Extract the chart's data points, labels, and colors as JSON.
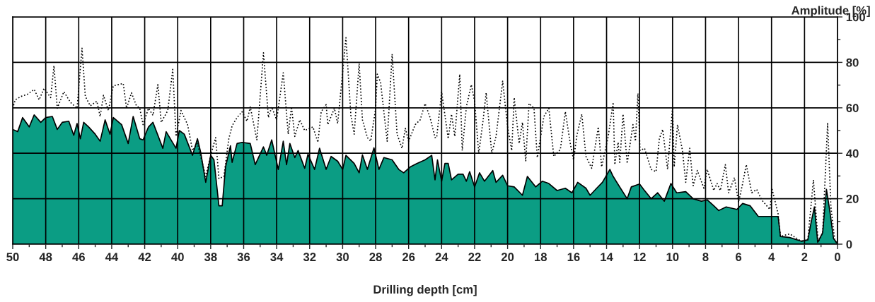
{
  "chart_data": {
    "type": "area",
    "xlabel": "Drilling depth [cm]",
    "ylabel": "Amplitude [%]",
    "xlim": [
      50,
      0
    ],
    "ylim": [
      0,
      100
    ],
    "xticks": [
      50,
      {
        "value": 49,
        "label": null
      },
      48,
      {
        "value": 47,
        "label": null
      },
      46,
      {
        "value": 45,
        "label": null
      },
      44,
      {
        "value": 43,
        "label": null
      },
      42,
      {
        "value": 41,
        "label": null
      },
      40,
      {
        "value": 39,
        "label": null
      },
      38,
      {
        "value": 37,
        "label": null
      },
      36,
      {
        "value": 35,
        "label": null
      },
      34,
      {
        "value": 33,
        "label": null
      },
      32,
      {
        "value": 31,
        "label": null
      },
      30,
      {
        "value": 29,
        "label": null
      },
      28,
      {
        "value": 27,
        "label": null
      },
      26,
      {
        "value": 25,
        "label": null
      },
      24,
      {
        "value": 23,
        "label": null
      },
      22,
      {
        "value": 21,
        "label": null
      },
      20,
      {
        "value": 19,
        "label": null
      },
      18,
      {
        "value": 17,
        "label": null
      },
      16,
      {
        "value": 15,
        "label": null
      },
      14,
      {
        "value": 13,
        "label": null
      },
      12,
      {
        "value": 11,
        "label": null
      },
      10,
      {
        "value": 9,
        "label": null
      },
      8,
      {
        "value": 7,
        "label": null
      },
      6,
      {
        "value": 5,
        "label": null
      },
      4,
      {
        "value": 3,
        "label": null
      },
      2,
      {
        "value": 1,
        "label": null
      },
      0
    ],
    "yticks": [
      0,
      {
        "value": 10,
        "label": null
      },
      20,
      {
        "value": 30,
        "label": null
      },
      40,
      {
        "value": 50,
        "label": null
      },
      60,
      {
        "value": 70,
        "label": null
      },
      80,
      {
        "value": 90,
        "label": null
      },
      100
    ],
    "grid": true,
    "legend": false,
    "series": [
      {
        "color": "#0b9d84",
        "line_style": "solid",
        "x": [
          50,
          49.7,
          49.4,
          49.0,
          48.7,
          48.3,
          48.0,
          47.6,
          47.3,
          47.0,
          46.6,
          46.3,
          46.1,
          45.9,
          45.7,
          45.4,
          45.0,
          44.7,
          44.4,
          44.1,
          43.9,
          43.4,
          43.0,
          42.7,
          42.3,
          42.1,
          41.77,
          41.5,
          40.9,
          40.7,
          40.1,
          39.9,
          39.6,
          39.1,
          38.8,
          38.6,
          38.3,
          38.0,
          37.8,
          37.5,
          37.3,
          37.1,
          36.8,
          36.7,
          36.4,
          36.1,
          35.6,
          35.3,
          34.8,
          34.6,
          34.3,
          33.9,
          33.6,
          33.4,
          33.2,
          32.9,
          32.7,
          32.3,
          32.1,
          31.7,
          31.4,
          31.0,
          30.7,
          30.3,
          30.0,
          29.8,
          29.3,
          29.0,
          28.8,
          28.5,
          28.1,
          27.8,
          27.5,
          27.0,
          26.6,
          26.3,
          25.9,
          25.5,
          25.0,
          24.6,
          24.4,
          24.25,
          24.0,
          23.8,
          23.6,
          23.4,
          23.0,
          22.7,
          22.5,
          22.3,
          22.0,
          21.7,
          21.4,
          20.9,
          20.7,
          20.3,
          20.0,
          19.6,
          19.1,
          18.8,
          18.3,
          17.9,
          17.5,
          17.0,
          16.5,
          16.1,
          15.75,
          15.25,
          15.0,
          14.6,
          14.25,
          13.8,
          13.6,
          13.25,
          12.75,
          12.5,
          12.0,
          11.75,
          11.3,
          10.9,
          10.5,
          10.1,
          9.75,
          9.2,
          8.75,
          8.25,
          7.9,
          7.5,
          7.2,
          6.75,
          6.1,
          5.75,
          5.3,
          4.8,
          4.2,
          3.6,
          3.46,
          2.9,
          2.2,
          1.8,
          1.6,
          1.4,
          1.2,
          0.9,
          0.67,
          0.46,
          0.24,
          0
        ],
        "values": [
          50.5,
          49.5,
          55.7,
          51.6,
          56.9,
          53.6,
          55.7,
          56.2,
          50.5,
          53.6,
          54.1,
          47.9,
          53.1,
          46.4,
          53.6,
          51.6,
          48.4,
          45.3,
          54.7,
          48.4,
          55.7,
          52.6,
          44.3,
          56.2,
          46.4,
          45.9,
          51.6,
          53.6,
          42.2,
          49.5,
          42.2,
          50.0,
          48.4,
          39.1,
          46.4,
          40.2,
          27.2,
          39.1,
          37.1,
          16.9,
          16.9,
          34.0,
          43.3,
          36.0,
          44.3,
          44.8,
          44.3,
          35.0,
          42.8,
          39.1,
          45.9,
          32.9,
          45.3,
          35.0,
          44.3,
          38.1,
          41.2,
          33.4,
          39.6,
          32.9,
          42.2,
          32.9,
          38.6,
          36.5,
          32.9,
          39.1,
          35.5,
          31.4,
          39.3,
          32.9,
          42.4,
          32.9,
          38.1,
          37.1,
          32.9,
          31.4,
          34.0,
          35.5,
          37.1,
          39.1,
          28.3,
          37.1,
          27.7,
          35.5,
          35.5,
          28.3,
          30.8,
          30.8,
          27.7,
          31.9,
          25.2,
          31.4,
          27.7,
          32.4,
          27.2,
          30.3,
          25.7,
          25.2,
          21.5,
          29.8,
          25.2,
          27.7,
          26.7,
          23.6,
          24.6,
          22.6,
          27.2,
          24.6,
          21.5,
          24.6,
          27.2,
          32.9,
          29.8,
          25.7,
          20.0,
          25.2,
          26.5,
          24.1,
          20.0,
          22.6,
          18.9,
          26.7,
          22.6,
          23.1,
          20.0,
          18.9,
          19.5,
          16.9,
          14.8,
          16.4,
          15.3,
          17.9,
          16.9,
          12.2,
          12.2,
          12.2,
          3.4,
          2.9,
          1.3,
          1.9,
          9.6,
          16.4,
          0.8,
          5.0,
          24.1,
          14.3,
          2.4,
          0.3
        ]
      },
      {
        "type": "line",
        "color": "#000000",
        "line_style": "dotted",
        "x": [
          50.0,
          49.85,
          49.5,
          49.1,
          48.7,
          48.4,
          48.1,
          47.7,
          47.5,
          47.3,
          46.9,
          46.5,
          46.1,
          45.8,
          45.6,
          45.3,
          44.9,
          44.7,
          44.5,
          44.2,
          43.9,
          43.3,
          43.1,
          42.8,
          42.5,
          42.3,
          42.1,
          41.77,
          41.5,
          41.2,
          41.0,
          40.6,
          40.3,
          40.1,
          39.8,
          39.4,
          39.1,
          38.8,
          38.3,
          38.0,
          37.7,
          37.5,
          37.2,
          36.9,
          36.7,
          36.4,
          36.1,
          35.8,
          35.6,
          35.2,
          34.8,
          34.5,
          34.3,
          34.0,
          33.6,
          33.3,
          33.1,
          32.9,
          32.6,
          32.3,
          31.8,
          31.5,
          31.3,
          31.0,
          30.9,
          30.5,
          30.3,
          30.1,
          29.8,
          29.5,
          29.3,
          29.0,
          28.8,
          28.5,
          28.3,
          28.0,
          27.9,
          27.7,
          27.3,
          27.0,
          26.7,
          26.4,
          26.2,
          26.0,
          25.6,
          25.3,
          25.0,
          24.7,
          24.4,
          24.3,
          24.0,
          23.6,
          23.4,
          23.2,
          22.9,
          22.75,
          22.5,
          22.2,
          22.0,
          21.75,
          21.5,
          21.3,
          20.96,
          20.7,
          20.3,
          20.0,
          19.75,
          19.6,
          19.3,
          19.1,
          18.9,
          18.7,
          18.4,
          18.2,
          17.8,
          17.5,
          17.2,
          16.8,
          16.5,
          16.2,
          16.0,
          15.8,
          15.5,
          15.25,
          14.9,
          14.5,
          14.3,
          13.9,
          13.6,
          13.5,
          13.3,
          13.2,
          13.0,
          12.75,
          12.4,
          12.25,
          12.1,
          11.97,
          11.7,
          11.3,
          11.0,
          10.8,
          10.6,
          10.3,
          10.0,
          9.9,
          9.7,
          9.4,
          9.2,
          8.96,
          8.75,
          8.5,
          8.1,
          7.9,
          7.5,
          7.3,
          7.1,
          6.8,
          6.6,
          6.25,
          6.0,
          5.75,
          5.53,
          5.2,
          4.9,
          4.6,
          4.1,
          3.96,
          3.6,
          3.46,
          2.9,
          2.2,
          1.8,
          1.46,
          1.17,
          0.9,
          0.6,
          0.4,
          0.16,
          0
        ],
        "values": [
          59.8,
          63.5,
          65.0,
          66.0,
          68.1,
          63.5,
          68.6,
          64.5,
          78.5,
          59.8,
          67.1,
          62.4,
          59.8,
          86.2,
          65.0,
          60.9,
          62.9,
          56.2,
          65.5,
          58.8,
          69.7,
          70.7,
          59.8,
          66.6,
          60.9,
          59.8,
          52.6,
          59.8,
          56.7,
          70.2,
          53.6,
          58.8,
          76.9,
          47.4,
          58.8,
          52.6,
          41.2,
          44.3,
          29.8,
          39.1,
          46.9,
          28.8,
          29.8,
          46.4,
          52.1,
          55.7,
          58.3,
          54.1,
          60.4,
          45.9,
          84.2,
          55.7,
          60.4,
          54.7,
          75.4,
          48.4,
          60.4,
          47.4,
          54.7,
          50.0,
          51.6,
          44.8,
          58.3,
          61.4,
          52.6,
          59.8,
          53.1,
          68.1,
          90.9,
          56.7,
          48.4,
          79.5,
          54.7,
          46.9,
          45.3,
          59.8,
          74.8,
          71.2,
          45.3,
          83.6,
          48.4,
          42.2,
          51.0,
          45.3,
          52.6,
          54.7,
          61.9,
          55.7,
          46.9,
          46.9,
          67.1,
          46.4,
          57.2,
          47.4,
          74.8,
          41.2,
          60.4,
          70.2,
          62.9,
          40.0,
          53.6,
          66.6,
          40.0,
          47.4,
          71.7,
          51.6,
          41.2,
          64.5,
          44.3,
          53.6,
          36.5,
          61.9,
          59.8,
          38.1,
          56.2,
          59.8,
          38.6,
          41.7,
          58.3,
          44.3,
          37.1,
          47.9,
          57.2,
          38.6,
          33.4,
          51.6,
          34.0,
          47.4,
          62.4,
          35.0,
          44.8,
          36.0,
          57.2,
          35.5,
          52.6,
          45.3,
          66.3,
          41.2,
          42.2,
          32.9,
          31.9,
          46.4,
          50.5,
          32.9,
          60.4,
          34.0,
          52.6,
          41.2,
          27.2,
          42.2,
          25.7,
          32.4,
          24.6,
          32.9,
          23.6,
          26.7,
          23.6,
          35.0,
          22.6,
          29.3,
          18.4,
          26.7,
          35.0,
          22.6,
          24.1,
          19.5,
          15.3,
          24.1,
          13.3,
          3.4,
          4.5,
          1.3,
          1.9,
          28.3,
          0.8,
          5.0,
          53.1,
          16.4,
          1.3,
          0.3
        ]
      }
    ]
  }
}
